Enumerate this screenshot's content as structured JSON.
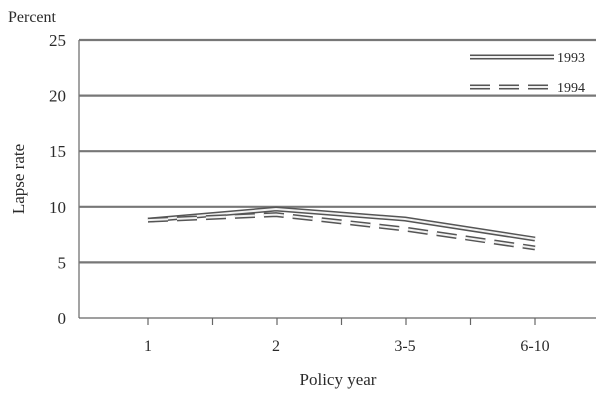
{
  "chart_data": {
    "type": "line",
    "unit_label": "Percent",
    "ylabel": "Lapse rate",
    "xlabel": "Policy year",
    "categories": [
      "1",
      "2",
      "3-5",
      "6-10"
    ],
    "ylim": [
      0,
      25
    ],
    "yticks": [
      0,
      5,
      10,
      15,
      20,
      25
    ],
    "grid": "horizontal",
    "legend_position": "top-right",
    "series": [
      {
        "name": "1993",
        "style": "solid",
        "color": "#555555",
        "values": [
          8.8,
          9.8,
          8.9,
          7.1
        ]
      },
      {
        "name": "1994",
        "style": "dashed",
        "color": "#555555",
        "values": [
          8.8,
          9.3,
          8.0,
          6.3
        ]
      }
    ]
  }
}
